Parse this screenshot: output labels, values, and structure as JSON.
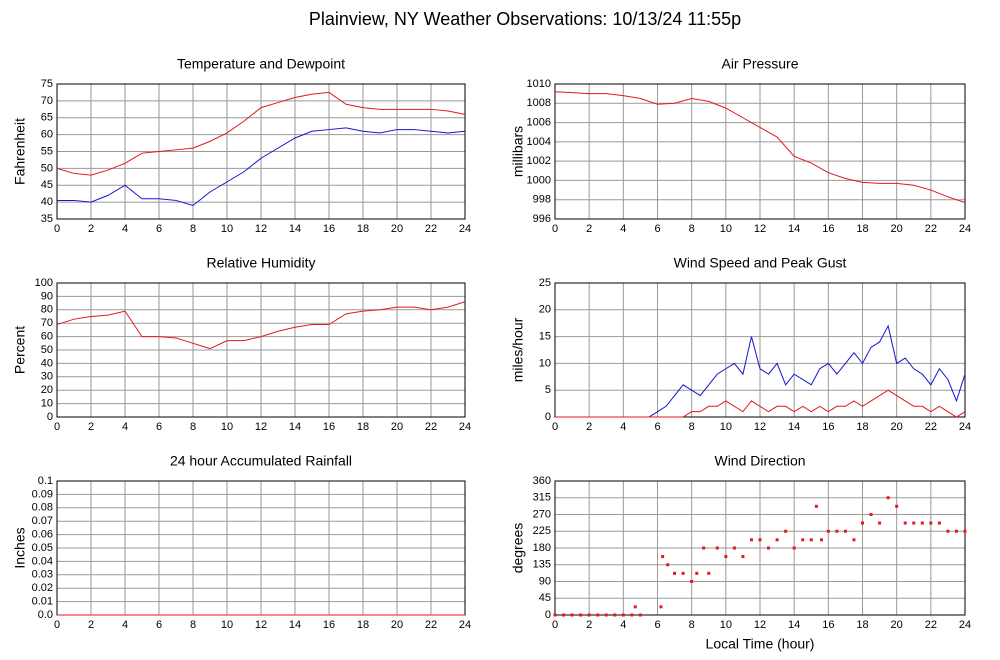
{
  "title": "Plainview, NY Weather Observations: 10/13/24 11:55p",
  "chart_data": [
    {
      "type": "line",
      "title": "Temperature and Dewpoint",
      "ylabel": "Fahrenheit",
      "x": [
        0,
        1,
        2,
        3,
        4,
        5,
        6,
        7,
        8,
        9,
        10,
        11,
        12,
        13,
        14,
        15,
        16,
        17,
        18,
        19,
        20,
        21,
        22,
        23,
        24
      ],
      "series": [
        {
          "color": "#e8161c",
          "values": [
            50,
            48.5,
            48,
            49.5,
            51.5,
            54.5,
            55,
            55.5,
            56,
            58,
            60.5,
            64,
            68,
            69.5,
            71,
            72,
            72.5,
            69,
            68,
            67.5,
            67.5,
            67.5,
            67.5,
            67,
            66
          ]
        },
        {
          "color": "#1414d2",
          "values": [
            40.5,
            40.5,
            40,
            42,
            45,
            41,
            41,
            40.5,
            39,
            43,
            46,
            49,
            53,
            56,
            59,
            61,
            61.5,
            62,
            61,
            60.5,
            61.5,
            61.5,
            61,
            60.5,
            61
          ]
        }
      ],
      "xlim": [
        0,
        24
      ],
      "xticks": [
        0,
        2,
        4,
        6,
        8,
        10,
        12,
        14,
        16,
        18,
        20,
        22,
        24
      ],
      "ylim": [
        35,
        75
      ],
      "yticks": [
        35,
        40,
        45,
        50,
        55,
        60,
        65,
        70,
        75
      ],
      "grid": true
    },
    {
      "type": "line",
      "title": "Air Pressure",
      "ylabel": "millibars",
      "x": [
        0,
        1,
        2,
        3,
        4,
        5,
        6,
        7,
        8,
        9,
        10,
        11,
        12,
        13,
        14,
        15,
        16,
        17,
        18,
        19,
        20,
        21,
        22,
        23,
        24
      ],
      "series": [
        {
          "color": "#e8161c",
          "values": [
            1009.2,
            1009.1,
            1009,
            1009,
            1008.8,
            1008.5,
            1007.9,
            1008,
            1008.5,
            1008.2,
            1007.5,
            1006.5,
            1005.5,
            1004.5,
            1002.5,
            1001.8,
            1000.8,
            1000.2,
            999.8,
            999.7,
            999.7,
            999.5,
            999,
            998.3,
            997.7
          ]
        }
      ],
      "xlim": [
        0,
        24
      ],
      "xticks": [
        0,
        2,
        4,
        6,
        8,
        10,
        12,
        14,
        16,
        18,
        20,
        22,
        24
      ],
      "ylim": [
        996,
        1010
      ],
      "yticks": [
        996,
        998,
        1000,
        1002,
        1004,
        1006,
        1008,
        1010
      ],
      "grid": true
    },
    {
      "type": "line",
      "title": "Relative Humidity",
      "ylabel": "Percent",
      "x": [
        0,
        1,
        2,
        3,
        4,
        5,
        6,
        7,
        8,
        9,
        10,
        11,
        12,
        13,
        14,
        15,
        16,
        17,
        18,
        19,
        20,
        21,
        22,
        23,
        24
      ],
      "series": [
        {
          "color": "#e8161c",
          "values": [
            69,
            73,
            75,
            76,
            79,
            60,
            60,
            59,
            55,
            51,
            57,
            57,
            60,
            64,
            67,
            69,
            69,
            77,
            79,
            80,
            82,
            82,
            80,
            82,
            86
          ]
        }
      ],
      "xlim": [
        0,
        24
      ],
      "xticks": [
        0,
        2,
        4,
        6,
        8,
        10,
        12,
        14,
        16,
        18,
        20,
        22,
        24
      ],
      "ylim": [
        0,
        100
      ],
      "yticks": [
        0,
        10,
        20,
        30,
        40,
        50,
        60,
        70,
        80,
        90,
        100
      ],
      "grid": true
    },
    {
      "type": "line",
      "title": "Wind Speed and Peak Gust",
      "ylabel": "miles/hour",
      "x": [
        0,
        0.5,
        1,
        1.5,
        2,
        2.5,
        3,
        3.5,
        4,
        4.5,
        5,
        5.5,
        6,
        6.5,
        7,
        7.5,
        8,
        8.5,
        9,
        9.5,
        10,
        10.5,
        11,
        11.5,
        12,
        12.5,
        13,
        13.5,
        14,
        14.5,
        15,
        15.5,
        16,
        16.5,
        17,
        17.5,
        18,
        18.5,
        19,
        19.5,
        20,
        20.5,
        21,
        21.5,
        22,
        22.5,
        23,
        23.5,
        24
      ],
      "series": [
        {
          "color": "#1414d2",
          "values": [
            0,
            0,
            0,
            0,
            0,
            0,
            0,
            0,
            0,
            0,
            0,
            0,
            1,
            2,
            4,
            6,
            5,
            4,
            6,
            8,
            9,
            10,
            8,
            15,
            9,
            8,
            10,
            6,
            8,
            7,
            6,
            9,
            10,
            8,
            10,
            12,
            10,
            13,
            14,
            17,
            10,
            11,
            9,
            8,
            6,
            9,
            7,
            3,
            8
          ]
        },
        {
          "color": "#e8161c",
          "values": [
            0,
            0,
            0,
            0,
            0,
            0,
            0,
            0,
            0,
            0,
            0,
            0,
            0,
            0,
            0,
            0,
            1,
            1,
            2,
            2,
            3,
            2,
            1,
            3,
            2,
            1,
            2,
            2,
            1,
            2,
            1,
            2,
            1,
            2,
            2,
            3,
            2,
            3,
            4,
            5,
            4,
            3,
            2,
            2,
            1,
            2,
            1,
            0,
            1
          ]
        }
      ],
      "xlim": [
        0,
        24
      ],
      "xticks": [
        0,
        2,
        4,
        6,
        8,
        10,
        12,
        14,
        16,
        18,
        20,
        22,
        24
      ],
      "ylim": [
        0,
        25
      ],
      "yticks": [
        0,
        5,
        10,
        15,
        20,
        25
      ],
      "grid": true
    },
    {
      "type": "line",
      "title": "24 hour Accumulated Rainfall",
      "ylabel": "Inches",
      "x": [
        0,
        24
      ],
      "series": [
        {
          "color": "#e8161c",
          "values": [
            0,
            0
          ]
        }
      ],
      "xlim": [
        0,
        24
      ],
      "xticks": [
        0,
        2,
        4,
        6,
        8,
        10,
        12,
        14,
        16,
        18,
        20,
        22,
        24
      ],
      "ylim": [
        0,
        0.1
      ],
      "yticks": [
        {
          "value": 0,
          "label": "0.0"
        },
        0.01,
        0.02,
        0.03,
        0.04,
        0.05,
        0.06,
        0.07,
        0.08,
        0.09,
        0.1
      ],
      "grid": true
    },
    {
      "type": "scatter",
      "title": "Wind Direction",
      "ylabel": "degrees",
      "xlabel": "Local Time (hour)",
      "x": [
        0,
        0.5,
        1,
        1.5,
        2,
        2.5,
        3,
        3.5,
        4,
        4.5,
        4.7,
        5,
        6.2,
        6.3,
        6.6,
        7,
        7.5,
        8,
        8.3,
        8.7,
        9,
        9.5,
        10,
        10.5,
        11,
        11.5,
        12,
        12.5,
        13,
        13.5,
        14,
        14.5,
        15,
        15.3,
        15.6,
        16,
        16.5,
        17,
        17.5,
        18,
        18.5,
        19,
        19.5,
        20,
        20.5,
        21,
        21.5,
        22,
        22.5,
        23,
        23.5,
        24
      ],
      "color": "#e8161c",
      "values": [
        0,
        0,
        0,
        0,
        0,
        0,
        0,
        0,
        0,
        0,
        22,
        0,
        22,
        157,
        135,
        112,
        112,
        90,
        112,
        180,
        112,
        180,
        157,
        180,
        157,
        202,
        202,
        180,
        202,
        225,
        180,
        202,
        202,
        292,
        202,
        225,
        225,
        225,
        202,
        247,
        270,
        247,
        315,
        292,
        247,
        247,
        247,
        247,
        247,
        225,
        225,
        225
      ],
      "xlim": [
        0,
        24
      ],
      "xticks": [
        0,
        2,
        4,
        6,
        8,
        10,
        12,
        14,
        16,
        18,
        20,
        22,
        24
      ],
      "ylim": [
        0,
        360
      ],
      "yticks": [
        0,
        45,
        90,
        135,
        180,
        225,
        270,
        315,
        360
      ],
      "grid": true
    }
  ]
}
